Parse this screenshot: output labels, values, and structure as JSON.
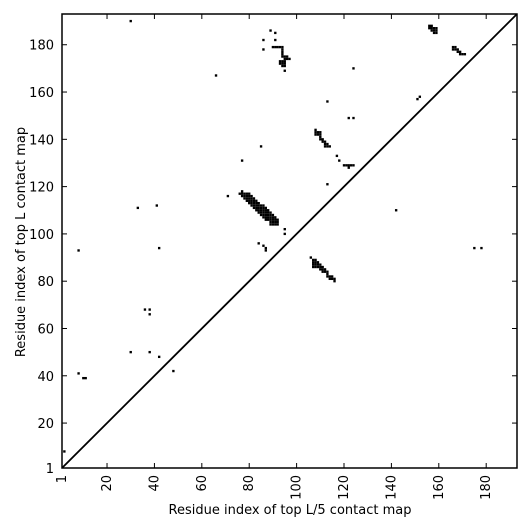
{
  "chart_data": {
    "type": "scatter",
    "title": "",
    "xlabel": "Residue index of top L/5 contact map",
    "ylabel": "Residue index of top L contact map",
    "xlim": [
      1,
      193
    ],
    "ylim": [
      1,
      193
    ],
    "x_ticks": [
      1,
      20,
      40,
      60,
      80,
      100,
      120,
      140,
      160,
      180
    ],
    "y_ticks": [
      1,
      20,
      40,
      60,
      80,
      100,
      120,
      140,
      160,
      180
    ],
    "diagonal": true,
    "marker_color": "#000000",
    "points": [
      [
        2,
        8
      ],
      [
        8,
        41
      ],
      [
        8,
        93
      ],
      [
        10,
        39
      ],
      [
        11,
        39
      ],
      [
        30,
        50
      ],
      [
        30,
        190
      ],
      [
        33,
        111
      ],
      [
        36,
        68
      ],
      [
        38,
        50
      ],
      [
        38,
        66
      ],
      [
        38,
        68
      ],
      [
        41,
        112
      ],
      [
        42,
        48
      ],
      [
        42,
        94
      ],
      [
        48,
        42
      ],
      [
        66,
        167
      ],
      [
        71,
        116
      ],
      [
        77,
        131
      ],
      [
        77,
        118
      ],
      [
        76,
        117
      ],
      [
        77,
        117
      ],
      [
        78,
        117
      ],
      [
        79,
        117
      ],
      [
        80,
        117
      ],
      [
        77,
        116
      ],
      [
        78,
        116
      ],
      [
        79,
        116
      ],
      [
        80,
        116
      ],
      [
        81,
        116
      ],
      [
        78,
        115
      ],
      [
        79,
        115
      ],
      [
        80,
        115
      ],
      [
        81,
        115
      ],
      [
        82,
        115
      ],
      [
        79,
        114
      ],
      [
        80,
        114
      ],
      [
        81,
        114
      ],
      [
        82,
        114
      ],
      [
        83,
        114
      ],
      [
        80,
        113
      ],
      [
        81,
        113
      ],
      [
        82,
        113
      ],
      [
        83,
        113
      ],
      [
        84,
        113
      ],
      [
        81,
        112
      ],
      [
        82,
        112
      ],
      [
        83,
        112
      ],
      [
        84,
        112
      ],
      [
        85,
        112
      ],
      [
        86,
        112
      ],
      [
        82,
        111
      ],
      [
        83,
        111
      ],
      [
        84,
        111
      ],
      [
        85,
        111
      ],
      [
        86,
        111
      ],
      [
        87,
        111
      ],
      [
        83,
        110
      ],
      [
        84,
        110
      ],
      [
        85,
        110
      ],
      [
        86,
        110
      ],
      [
        87,
        110
      ],
      [
        88,
        110
      ],
      [
        84,
        109
      ],
      [
        85,
        109
      ],
      [
        86,
        109
      ],
      [
        87,
        109
      ],
      [
        88,
        109
      ],
      [
        89,
        109
      ],
      [
        85,
        108
      ],
      [
        86,
        108
      ],
      [
        87,
        108
      ],
      [
        88,
        108
      ],
      [
        89,
        108
      ],
      [
        90,
        108
      ],
      [
        86,
        107
      ],
      [
        87,
        107
      ],
      [
        88,
        107
      ],
      [
        89,
        107
      ],
      [
        90,
        107
      ],
      [
        91,
        107
      ],
      [
        87,
        106
      ],
      [
        88,
        106
      ],
      [
        89,
        106
      ],
      [
        90,
        106
      ],
      [
        91,
        106
      ],
      [
        92,
        106
      ],
      [
        89,
        105
      ],
      [
        90,
        105
      ],
      [
        91,
        105
      ],
      [
        92,
        105
      ],
      [
        89,
        104
      ],
      [
        90,
        104
      ],
      [
        91,
        104
      ],
      [
        92,
        104
      ],
      [
        85,
        137
      ],
      [
        84,
        96
      ],
      [
        86,
        95
      ],
      [
        87,
        94
      ],
      [
        87,
        93
      ],
      [
        95,
        102
      ],
      [
        95,
        100
      ],
      [
        86,
        178
      ],
      [
        86,
        182
      ],
      [
        89,
        186
      ],
      [
        90,
        179
      ],
      [
        91,
        179
      ],
      [
        91,
        182
      ],
      [
        91,
        185
      ],
      [
        92,
        179
      ],
      [
        93,
        179
      ],
      [
        94,
        179
      ],
      [
        94,
        178
      ],
      [
        94,
        177
      ],
      [
        94,
        176
      ],
      [
        94,
        175
      ],
      [
        95,
        175
      ],
      [
        96,
        175
      ],
      [
        95,
        174
      ],
      [
        96,
        174
      ],
      [
        97,
        174
      ],
      [
        93,
        173
      ],
      [
        94,
        173
      ],
      [
        95,
        173
      ],
      [
        93,
        172
      ],
      [
        94,
        172
      ],
      [
        95,
        172
      ],
      [
        94,
        171
      ],
      [
        95,
        171
      ],
      [
        95,
        169
      ],
      [
        106,
        90
      ],
      [
        107,
        89
      ],
      [
        108,
        89
      ],
      [
        107,
        88
      ],
      [
        108,
        88
      ],
      [
        109,
        88
      ],
      [
        107,
        87
      ],
      [
        108,
        87
      ],
      [
        109,
        87
      ],
      [
        110,
        87
      ],
      [
        107,
        86
      ],
      [
        108,
        86
      ],
      [
        109,
        86
      ],
      [
        110,
        86
      ],
      [
        111,
        86
      ],
      [
        110,
        85
      ],
      [
        111,
        85
      ],
      [
        112,
        85
      ],
      [
        111,
        84
      ],
      [
        112,
        84
      ],
      [
        113,
        84
      ],
      [
        113,
        83
      ],
      [
        113,
        82
      ],
      [
        114,
        82
      ],
      [
        115,
        82
      ],
      [
        114,
        81
      ],
      [
        115,
        81
      ],
      [
        116,
        81
      ],
      [
        116,
        80
      ],
      [
        108,
        144
      ],
      [
        108,
        143
      ],
      [
        109,
        143
      ],
      [
        110,
        143
      ],
      [
        108,
        142
      ],
      [
        109,
        142
      ],
      [
        110,
        142
      ],
      [
        110,
        141
      ],
      [
        110,
        140
      ],
      [
        111,
        140
      ],
      [
        111,
        139
      ],
      [
        112,
        139
      ],
      [
        112,
        138
      ],
      [
        113,
        138
      ],
      [
        112,
        137
      ],
      [
        113,
        137
      ],
      [
        114,
        137
      ],
      [
        113,
        156
      ],
      [
        113,
        121
      ],
      [
        117,
        133
      ],
      [
        118,
        131
      ],
      [
        120,
        129
      ],
      [
        121,
        129
      ],
      [
        122,
        129
      ],
      [
        123,
        129
      ],
      [
        124,
        129
      ],
      [
        122,
        128
      ],
      [
        122,
        149
      ],
      [
        124,
        149
      ],
      [
        124,
        170
      ],
      [
        142,
        110
      ],
      [
        151,
        157
      ],
      [
        152,
        158
      ],
      [
        156,
        188
      ],
      [
        157,
        188
      ],
      [
        156,
        187
      ],
      [
        157,
        187
      ],
      [
        158,
        187
      ],
      [
        159,
        187
      ],
      [
        157,
        186
      ],
      [
        158,
        186
      ],
      [
        159,
        186
      ],
      [
        158,
        185
      ],
      [
        159,
        185
      ],
      [
        166,
        179
      ],
      [
        167,
        179
      ],
      [
        166,
        178
      ],
      [
        167,
        178
      ],
      [
        168,
        178
      ],
      [
        168,
        177
      ],
      [
        169,
        177
      ],
      [
        169,
        176
      ],
      [
        170,
        176
      ],
      [
        171,
        176
      ],
      [
        175,
        94
      ],
      [
        178,
        94
      ]
    ]
  }
}
